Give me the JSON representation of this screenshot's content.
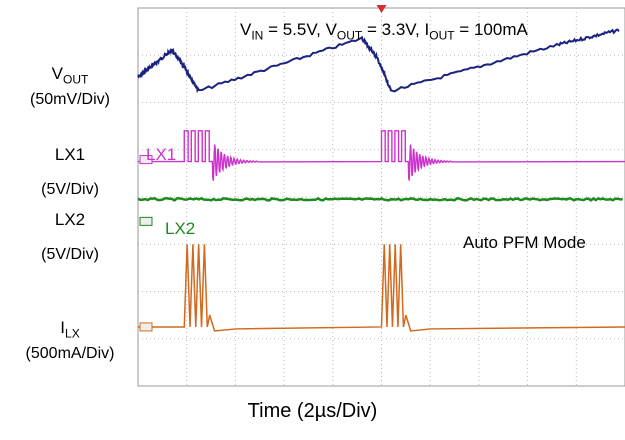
{
  "chart_data": {
    "type": "line",
    "title": "",
    "xlabel": "Time (2µs/Div)",
    "conditions": {
      "vin_sym": "V",
      "vin_sub": "IN",
      "vin_val": " = 5.5V, ",
      "vout_sym": "V",
      "vout_sub": "OUT",
      "vout_val": " = 3.3V, ",
      "iout_sym": "I",
      "iout_sub": "OUT",
      "iout_val": " = 100mA"
    },
    "mode_label": "Auto PFM Mode",
    "x_divisions": 10,
    "y_divisions": 8,
    "grid": true,
    "channels": [
      {
        "name_sym": "V",
        "name_sub": "OUT",
        "scale": "(50mV/Div)",
        "color": "#1a237e"
      },
      {
        "name": "LX1",
        "scale": "(5V/Div)",
        "color": "#cc33cc",
        "inline_label": "LX1"
      },
      {
        "name": "LX2",
        "scale": "(5V/Div)",
        "color": "#1e8a1e",
        "inline_label": "LX2"
      },
      {
        "name_sym": "I",
        "name_sub": "LX",
        "scale": "(500mA/Div)",
        "color": "#d2691e"
      }
    ],
    "series": [
      {
        "name": "VOUT",
        "x_div": [
          0,
          0.3,
          0.7,
          0.95,
          1.25,
          4.6,
          4.9,
          5.2,
          8.6,
          9.9
        ],
        "y_div": [
          -0.6,
          -0.95,
          -1.4,
          -0.9,
          -0.2,
          -1.75,
          -1.2,
          -0.2,
          -1.55,
          -2.0
        ]
      },
      {
        "name": "LX1",
        "burst_start_div": [
          0.95,
          5.0
        ],
        "burst_end_div": [
          2.0,
          6.0
        ]
      },
      {
        "name": "LX2",
        "level_div": 0
      },
      {
        "name": "ILX",
        "burst_start_div": [
          0.95,
          5.0
        ],
        "burst_end_div": [
          2.0,
          6.0
        ]
      }
    ]
  }
}
